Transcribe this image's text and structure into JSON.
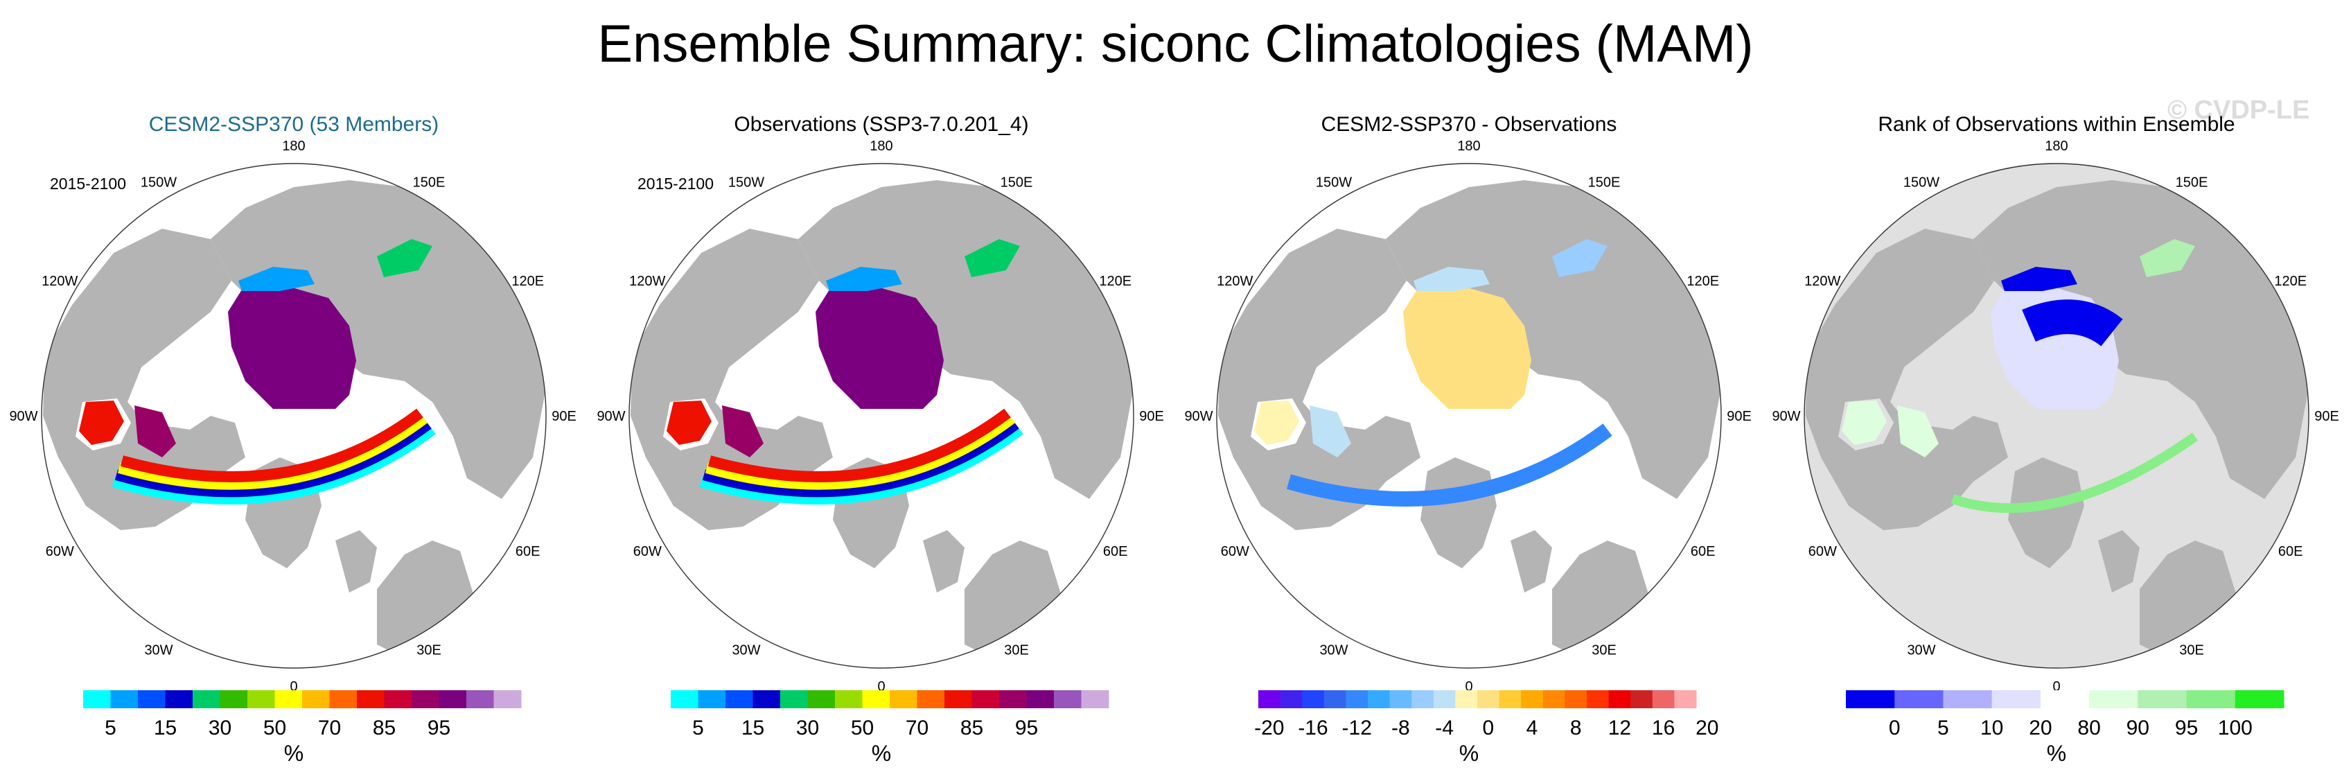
{
  "title": "Ensemble Summary: siconc Climatologies (MAM)",
  "watermark": "© CVDP-LE",
  "colors": {
    "land": "#b4b4b4",
    "ocean": "#ffffff",
    "outside_rank": "#e0e0e0",
    "model_title": "#1c6b8f"
  },
  "longitude_labels": [
    "180",
    "150E",
    "120E",
    "90E",
    "60E",
    "30E",
    "0",
    "30W",
    "60W",
    "90W",
    "120W",
    "150W"
  ],
  "chart_data": [
    {
      "type": "heatmap",
      "title": "CESM2-SSP370 (53 Members)",
      "period": "2015-2100",
      "projection": "polar stereographic",
      "variable": "siconc",
      "units": "%",
      "colorbar": {
        "labels": [
          "5",
          "15",
          "30",
          "50",
          "70",
          "85",
          "95"
        ],
        "unit": "%",
        "colors": [
          "#00ffff",
          "#00a0ff",
          "#0050ff",
          "#0000cc",
          "#00cc66",
          "#33bb00",
          "#99dd00",
          "#ffff00",
          "#ffbb00",
          "#ff6600",
          "#ee1100",
          "#cc0033",
          "#990066",
          "#7a0080",
          "#9955bb",
          "#ccaadd"
        ]
      }
    },
    {
      "type": "heatmap",
      "title": "Observations (SSP3-7.0.201_4)",
      "period": "2015-2100",
      "projection": "polar stereographic",
      "variable": "siconc",
      "units": "%",
      "colorbar": {
        "labels": [
          "5",
          "15",
          "30",
          "50",
          "70",
          "85",
          "95"
        ],
        "unit": "%",
        "colors": [
          "#00ffff",
          "#00a0ff",
          "#0050ff",
          "#0000cc",
          "#00cc66",
          "#33bb00",
          "#99dd00",
          "#ffff00",
          "#ffbb00",
          "#ff6600",
          "#ee1100",
          "#cc0033",
          "#990066",
          "#7a0080",
          "#9955bb",
          "#ccaadd"
        ]
      }
    },
    {
      "type": "heatmap",
      "title": "CESM2-SSP370 - Observations",
      "projection": "polar stereographic",
      "variable": "siconc difference",
      "units": "%",
      "colorbar": {
        "labels": [
          "-20",
          "-16",
          "-12",
          "-8",
          "-4",
          "0",
          "4",
          "8",
          "12",
          "16",
          "20"
        ],
        "unit": "%",
        "colors": [
          "#7000ee",
          "#4422ee",
          "#2244ff",
          "#3366ee",
          "#3388ff",
          "#33aaff",
          "#66bbff",
          "#99ccff",
          "#bde2f7",
          "#fff5b0",
          "#ffe080",
          "#ffcc33",
          "#ffaa00",
          "#ff8800",
          "#ff6600",
          "#ff3300",
          "#ee0000",
          "#cc2222",
          "#ee6666",
          "#ffaaaa"
        ]
      }
    },
    {
      "type": "heatmap",
      "title": "Rank of Observations within Ensemble",
      "projection": "polar stereographic",
      "variable": "rank",
      "units": "%",
      "colorbar": {
        "labels": [
          "0",
          "5",
          "10",
          "20",
          "80",
          "90",
          "95",
          "100"
        ],
        "unit": "%",
        "colors": [
          "#0000ee",
          "#6666ff",
          "#b0b0ff",
          "#e0e0ff",
          "#ffffff",
          "#ddffdd",
          "#b0f0b0",
          "#88ee88",
          "#22ee22"
        ]
      }
    }
  ]
}
